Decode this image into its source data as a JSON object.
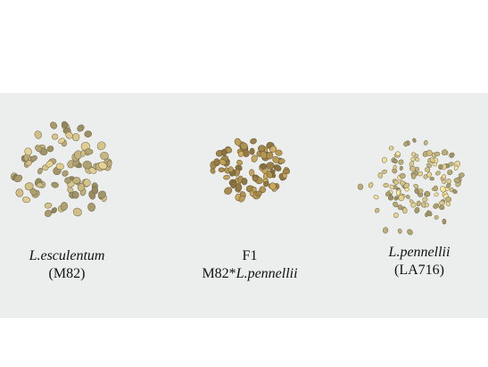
{
  "groups": [
    {
      "id": "esculentum",
      "line1": "L.esculentum",
      "line2": "(M82)",
      "seed_count": 90,
      "seed_color": "#c5b47f"
    },
    {
      "id": "f1",
      "line1": "F1",
      "line2_prefix": "M82*",
      "line2_italic": "L.pennellii",
      "seed_count": 85,
      "seed_color": "#b49654"
    },
    {
      "id": "pennellii",
      "line1": "L.pennellii",
      "line2": "(LA716)",
      "seed_count": 130,
      "seed_color": "#d7c68a"
    }
  ]
}
